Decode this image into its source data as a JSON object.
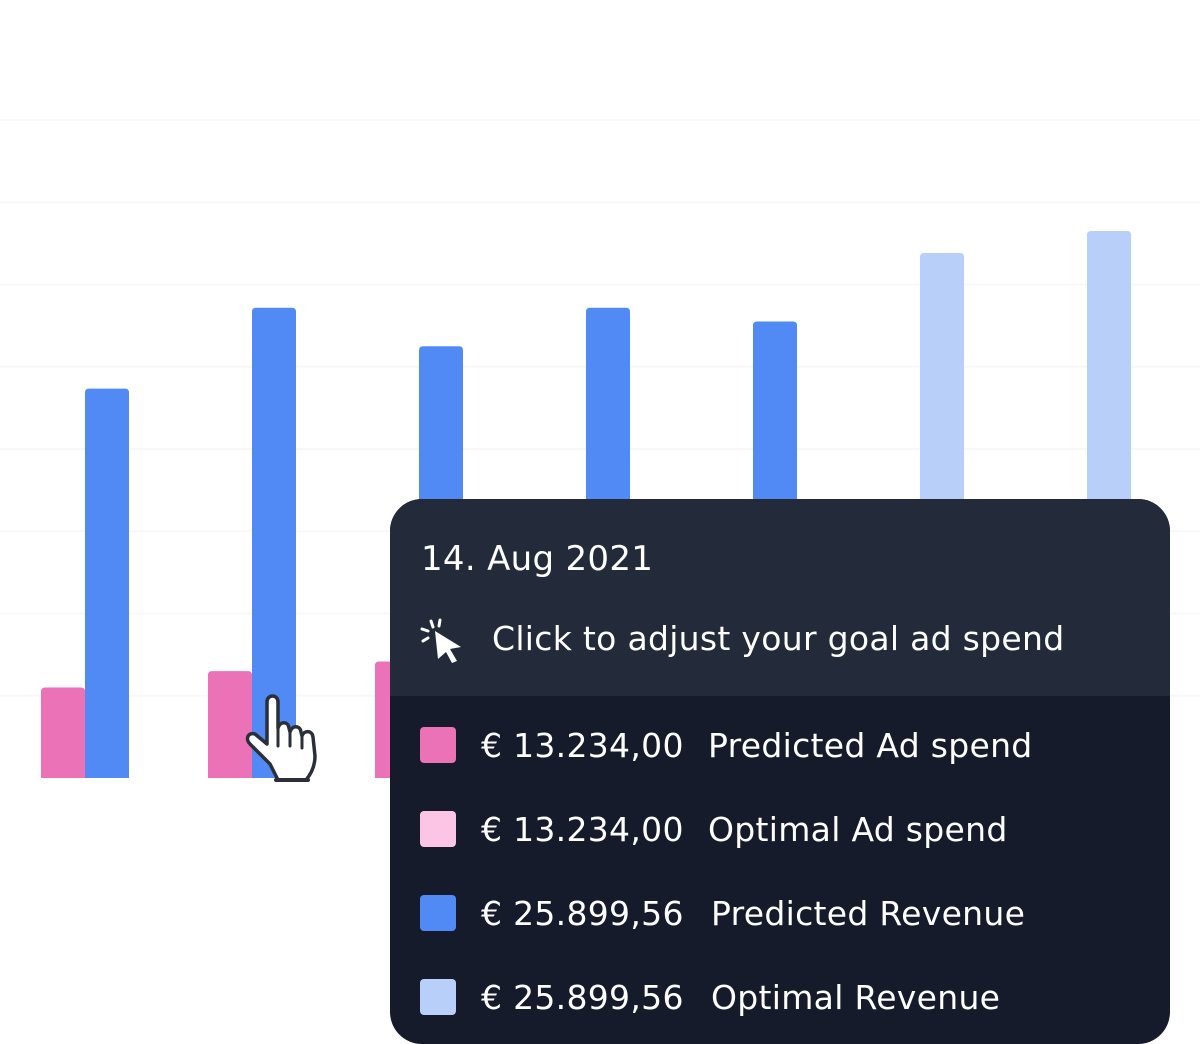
{
  "chart_data": {
    "type": "bar",
    "categories": [
      "",
      "",
      "",
      "",
      "",
      "",
      ""
    ],
    "series": [
      {
        "name": "Predicted Ad spend",
        "color": "#eb72b7",
        "values": [
          6.6,
          7.8,
          8.5,
          null,
          null,
          null,
          null
        ]
      },
      {
        "name": "Predicted Revenue",
        "color": "#528af5",
        "values": [
          28.4,
          34.3,
          31.5,
          34.3,
          33.3,
          null,
          null
        ]
      },
      {
        "name": "Optimal Revenue",
        "color": "#b8cffa",
        "values": [
          null,
          null,
          null,
          null,
          null,
          38.3,
          39.9
        ]
      }
    ],
    "ylim": [
      0,
      48
    ],
    "grid": true,
    "gridline_color": "#f7f8fa",
    "xlabel": "",
    "ylabel": ""
  },
  "tooltip": {
    "date": "14. Aug 2021",
    "hint": "Click to adjust your goal ad spend",
    "hint_icon": "click-cursor-icon",
    "rows": [
      {
        "value": "€ 13.234,00",
        "label": "Predicted Ad spend",
        "color": "#eb72b7"
      },
      {
        "value": "€ 13.234,00",
        "label": "Optimal Ad spend",
        "color": "#fcc5e6"
      },
      {
        "value": "€ 25.899,56",
        "label": "Predicted Revenue",
        "color": "#528af5"
      },
      {
        "value": "€ 25.899,56",
        "label": "Optimal Revenue",
        "color": "#b8cffa"
      }
    ]
  },
  "cursor": {
    "icon": "hand-pointer-icon"
  }
}
